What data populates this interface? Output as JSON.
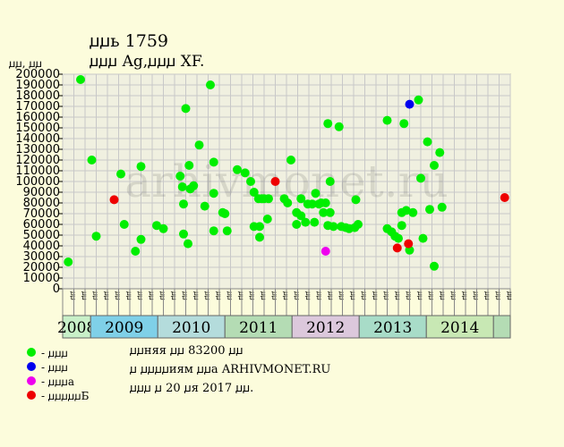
{
  "header": {
    "title": "ꙡꙡь 1759",
    "subtitle": "ꙡꙡꙡ Ag,ꙡꙡꙡ XF.",
    "y_unit": "ꙡꙡ, ꙡꙡ"
  },
  "watermark": "arhivmonet.ru",
  "legend": [
    {
      "label": "- ꙡꙡꙡ",
      "color": "#00ee00"
    },
    {
      "label": "- ꙡꙡꙡ",
      "color": "#0000ee"
    },
    {
      "label": "- ꙡꙡꙡа",
      "color": "#ee00ee"
    },
    {
      "label": "- ꙡꙡꙡꙡꙡБ",
      "color": "#ee0000"
    }
  ],
  "info": {
    "line1": "ꙡꙡняя ꙡꙡ 83200 ꙡꙡ",
    "line2": "ꙡ ꙡꙡꙡꙡиям ꙡꙡа ARHIVMONET.RU",
    "line3": "ꙡꙡꙡ ꙡ 20 ꙡя 2017 ꙡꙡ."
  },
  "chart_data": {
    "type": "scatter",
    "ylim": [
      0,
      200000
    ],
    "yticks": [
      0,
      10000,
      20000,
      30000,
      40000,
      50000,
      60000,
      70000,
      80000,
      90000,
      100000,
      110000,
      120000,
      130000,
      140000,
      150000,
      160000,
      170000,
      180000,
      190000,
      200000
    ],
    "month_labels": [
      "ꙡꙡ",
      "ꙡꙡ",
      "ꙡꙡ",
      "ꙡꙡ",
      "ꙡꙡ",
      "ꙡꙡ",
      "ꙡꙡ",
      "ꙡꙡ",
      "ꙡꙡ",
      "ꙡꙡ",
      "ꙡꙡ",
      "ꙡꙡ",
      "ꙡꙡ",
      "ꙡꙡ",
      "ꙡꙡ",
      "ꙡꙡ",
      "ꙡꙡ",
      "ꙡꙡ",
      "ꙡꙡ",
      "ꙡꙡ",
      "ꙡꙡ",
      "ꙡꙡ",
      "ꙡꙡ",
      "ꙡꙡ",
      "ꙡꙡ",
      "ꙡꙡ",
      "ꙡꙡ",
      "ꙡꙡ",
      "ꙡꙡ",
      "ꙡꙡ",
      "ꙡꙡ",
      "ꙡꙡ",
      "ꙡꙡ",
      "ꙡꙡ",
      "ꙡꙡ",
      "ꙡꙡ",
      "ꙡꙡ",
      "ꙡꙡ",
      "ꙡꙡ",
      "ꙡꙡ"
    ],
    "years": [
      {
        "label": "2008",
        "start": 0,
        "end": 2.5,
        "color": "#c8f0c8"
      },
      {
        "label": "2009",
        "start": 2.5,
        "end": 8.5,
        "color": "#7fd0e8"
      },
      {
        "label": "2010",
        "start": 8.5,
        "end": 14.5,
        "color": "#b4dcdc"
      },
      {
        "label": "2011",
        "start": 14.5,
        "end": 20.5,
        "color": "#b4dcb4"
      },
      {
        "label": "2012",
        "start": 20.5,
        "end": 26.5,
        "color": "#dcc8dc"
      },
      {
        "label": "2013",
        "start": 26.5,
        "end": 32.5,
        "color": "#a8dcc8"
      },
      {
        "label": "2014",
        "start": 32.5,
        "end": 38.5,
        "color": "#c8e8b4"
      },
      {
        "label": "",
        "start": 38.5,
        "end": 40,
        "color": "#b4dcb4"
      }
    ],
    "series": [
      {
        "name": "ꙡꙡꙡ",
        "color": "#00ee00",
        "points": [
          [
            0.5,
            25000
          ],
          [
            1.6,
            195000
          ],
          [
            2.6,
            120000
          ],
          [
            3.0,
            49000
          ],
          [
            5.2,
            107000
          ],
          [
            5.5,
            60000
          ],
          [
            6.5,
            35000
          ],
          [
            7.0,
            114000
          ],
          [
            7.0,
            46000
          ],
          [
            8.4,
            59000
          ],
          [
            9.0,
            56000
          ],
          [
            10.5,
            105000
          ],
          [
            10.7,
            95000
          ],
          [
            10.8,
            79000
          ],
          [
            10.8,
            51000
          ],
          [
            11.0,
            168000
          ],
          [
            11.2,
            42000
          ],
          [
            11.3,
            115000
          ],
          [
            11.4,
            93000
          ],
          [
            11.7,
            96000
          ],
          [
            12.2,
            134000
          ],
          [
            12.7,
            77000
          ],
          [
            13.2,
            190000
          ],
          [
            13.5,
            118000
          ],
          [
            13.5,
            89000
          ],
          [
            13.5,
            54000
          ],
          [
            14.3,
            71000
          ],
          [
            14.5,
            70000
          ],
          [
            14.7,
            54000
          ],
          [
            15.6,
            111000
          ],
          [
            16.3,
            108000
          ],
          [
            16.8,
            100000
          ],
          [
            17.1,
            90000
          ],
          [
            17.1,
            58000
          ],
          [
            17.5,
            84000
          ],
          [
            17.6,
            48000
          ],
          [
            17.6,
            58000
          ],
          [
            17.8,
            84000
          ],
          [
            18.0,
            84000
          ],
          [
            18.3,
            65000
          ],
          [
            18.4,
            84000
          ],
          [
            19.8,
            84000
          ],
          [
            20.1,
            80000
          ],
          [
            20.4,
            120000
          ],
          [
            20.9,
            71000
          ],
          [
            20.9,
            60000
          ],
          [
            21.3,
            84000
          ],
          [
            21.3,
            68000
          ],
          [
            21.7,
            62000
          ],
          [
            21.9,
            79000
          ],
          [
            22.3,
            79000
          ],
          [
            22.5,
            62000
          ],
          [
            22.6,
            89000
          ],
          [
            22.9,
            79000
          ],
          [
            23.1,
            80000
          ],
          [
            23.3,
            71000
          ],
          [
            23.5,
            80000
          ],
          [
            23.7,
            154000
          ],
          [
            23.7,
            59000
          ],
          [
            23.9,
            71000
          ],
          [
            23.9,
            100000
          ],
          [
            24.2,
            58000
          ],
          [
            24.7,
            151000
          ],
          [
            24.9,
            58000
          ],
          [
            25.3,
            57000
          ],
          [
            25.6,
            56000
          ],
          [
            26.2,
            83000
          ],
          [
            26.1,
            57000
          ],
          [
            26.4,
            60000
          ],
          [
            29.0,
            157000
          ],
          [
            29.0,
            56000
          ],
          [
            29.4,
            53000
          ],
          [
            29.7,
            49000
          ],
          [
            30.0,
            47000
          ],
          [
            30.3,
            71000
          ],
          [
            30.3,
            59000
          ],
          [
            30.5,
            154000
          ],
          [
            30.7,
            73000
          ],
          [
            31.0,
            36000
          ],
          [
            31.3,
            71000
          ],
          [
            31.8,
            176000
          ],
          [
            32.0,
            103000
          ],
          [
            32.2,
            47000
          ],
          [
            32.6,
            137000
          ],
          [
            32.8,
            74000
          ],
          [
            33.2,
            115000
          ],
          [
            33.2,
            21000
          ],
          [
            33.7,
            127000
          ],
          [
            33.9,
            76000
          ]
        ]
      },
      {
        "name": "ꙡꙡꙡ",
        "color": "#0000ee",
        "points": [
          [
            31.0,
            172000
          ]
        ]
      },
      {
        "name": "ꙡꙡꙡа",
        "color": "#ee00ee",
        "points": [
          [
            23.5,
            35000
          ]
        ]
      },
      {
        "name": "ꙡꙡꙡꙡꙡБ",
        "color": "#ee0000",
        "points": [
          [
            4.6,
            83000
          ],
          [
            19.0,
            100000
          ],
          [
            29.9,
            38000
          ],
          [
            30.9,
            42000
          ],
          [
            39.5,
            85000
          ]
        ]
      }
    ]
  }
}
